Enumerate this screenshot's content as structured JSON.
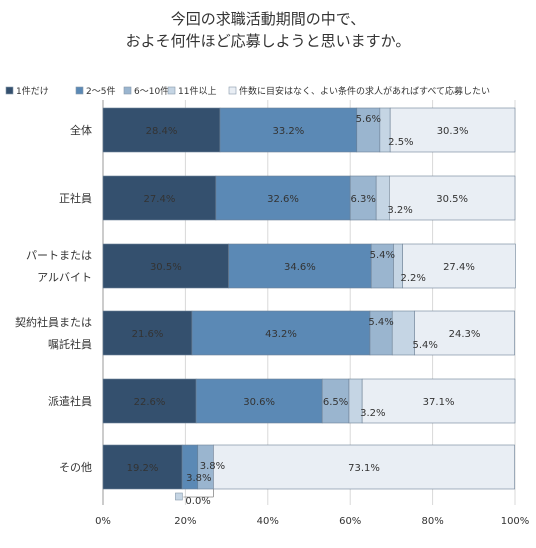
{
  "chart_data": {
    "type": "bar",
    "orientation": "horizontal",
    "stacked": true,
    "title": [
      "今回の求職活動期間の中で、",
      "およそ何件ほど応募しようと思いますか。"
    ],
    "categories": [
      [
        "全体"
      ],
      [
        "正社員"
      ],
      [
        "パートまたは",
        "アルバイト"
      ],
      [
        "契約社員または",
        "嘱託社員"
      ],
      [
        "派遣社員"
      ],
      [
        "その他"
      ]
    ],
    "series": [
      {
        "name": "1件だけ",
        "color": "#34506e",
        "values": [
          28.4,
          27.4,
          30.5,
          21.6,
          22.6,
          19.2
        ]
      },
      {
        "name": "2～5件",
        "color": "#5b89b5",
        "values": [
          33.2,
          32.6,
          34.6,
          43.2,
          30.6,
          3.8
        ]
      },
      {
        "name": "6～10件",
        "color": "#9ab5cf",
        "values": [
          5.6,
          6.3,
          5.4,
          5.4,
          6.5,
          3.8
        ]
      },
      {
        "name": "11件以上",
        "color": "#c5d5e4",
        "values": [
          2.5,
          3.2,
          2.2,
          5.4,
          3.2,
          0.0
        ]
      },
      {
        "name": "件数に目安はなく、よい条件の求人があればすべて応募したい",
        "color": "#e9eef4",
        "values": [
          30.3,
          30.5,
          27.4,
          24.3,
          37.1,
          73.1
        ]
      }
    ],
    "value_labels": [
      [
        "28.4%",
        "33.2%",
        "5.6%",
        "2.5%",
        "30.3%"
      ],
      [
        "27.4%",
        "32.6%",
        "6.3%",
        "3.2%",
        "30.5%"
      ],
      [
        "30.5%",
        "34.6%",
        "5.4%",
        "2.2%",
        "27.4%"
      ],
      [
        "21.6%",
        "43.2%",
        "5.4%",
        "5.4%",
        "24.3%"
      ],
      [
        "22.6%",
        "30.6%",
        "6.5%",
        "3.2%",
        "37.1%"
      ],
      [
        "19.2%",
        "3.8%",
        "3.8%",
        "0.0%",
        "73.1%"
      ]
    ],
    "xlim": [
      0,
      100
    ],
    "xticks": [
      "0%",
      "20%",
      "40%",
      "60%",
      "80%",
      "100%"
    ],
    "legend_position": "top"
  }
}
